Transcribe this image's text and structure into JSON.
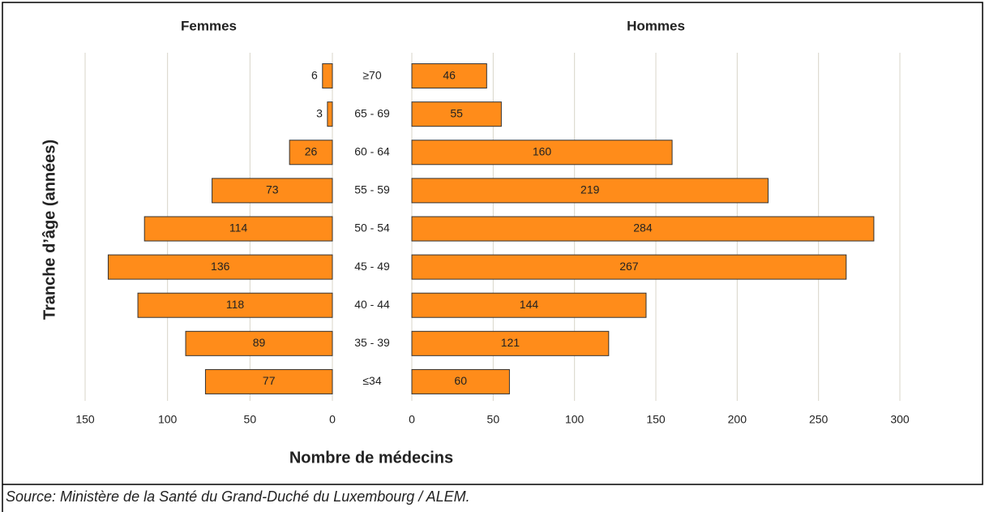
{
  "chart_data": {
    "type": "pyramid",
    "y_axis_label": "Tranche d’âge (années)",
    "x_axis_label": "Nombre de médecins",
    "source": "Source: Ministère de la Santé du Grand-Duché du Luxembourg / ALEM.",
    "categories": [
      "≥70",
      "65 - 69",
      "60 - 64",
      "55 - 59",
      "50 - 54",
      "45 - 49",
      "40 - 44",
      "35 - 39",
      "≤34"
    ],
    "grid": true,
    "series": [
      {
        "name": "Femmes",
        "color": "#ff8c1a",
        "values": [
          6,
          3,
          26,
          73,
          114,
          136,
          118,
          89,
          77
        ],
        "xlim": [
          0,
          150
        ],
        "xticks": [
          150,
          100,
          50,
          0
        ],
        "xreverse": true
      },
      {
        "name": "Hommes",
        "color": "#ff8c1a",
        "values": [
          46,
          55,
          160,
          219,
          284,
          267,
          144,
          121,
          60
        ],
        "xlim": [
          0,
          300
        ],
        "xticks": [
          0,
          50,
          100,
          150,
          200,
          250,
          300
        ],
        "xreverse": false
      }
    ]
  }
}
